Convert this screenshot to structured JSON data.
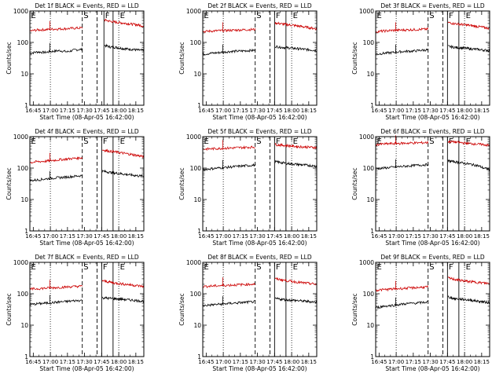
{
  "figure": {
    "event_labels": [
      "S",
      "F",
      "E"
    ],
    "first_label": "E"
  },
  "chart_data": [
    {
      "type": "line",
      "title": "Det 1f BLACK = Events, RED = LLD",
      "xlabel": "Start Time (08-Apr-05 16:42:00)",
      "ylabel": "Counts/sec",
      "yscale": "log",
      "ylim": [
        1,
        1000
      ],
      "xlim": [
        "16:42",
        "18:22"
      ],
      "x_ticks": [
        "16:45",
        "17:00",
        "17:15",
        "17:30",
        "17:45",
        "18:00",
        "18:15"
      ],
      "y_ticks": [
        "1",
        "10",
        "100",
        "1000"
      ],
      "series": [
        {
          "color": "#000000",
          "values_pre": [
            45,
            50,
            48,
            52,
            55,
            50,
            58,
            60
          ],
          "values_post": [
            80,
            72,
            70,
            65,
            62,
            60,
            57,
            55
          ]
        },
        {
          "color": "#cc0000",
          "values_pre": [
            230,
            250,
            255,
            265,
            270,
            275,
            285,
            290
          ],
          "values_post": [
            520,
            470,
            440,
            420,
            400,
            380,
            360,
            330
          ]
        }
      ],
      "dotted_lines": [
        "17:00",
        "18:00"
      ],
      "dashed_lines": [
        "17:28",
        "17:41"
      ],
      "solid_lines": [
        "17:47",
        "17:55"
      ]
    },
    {
      "type": "line",
      "title": "Det 2f BLACK = Events, RED = LLD",
      "xlabel": "Start Time (08-Apr-05 16:42:00)",
      "ylabel": "Counts/sec",
      "yscale": "log",
      "ylim": [
        1,
        1000
      ],
      "xlim": [
        "16:42",
        "18:22"
      ],
      "x_ticks": [
        "16:45",
        "17:00",
        "17:15",
        "17:30",
        "17:45",
        "18:00",
        "18:15"
      ],
      "y_ticks": [
        "1",
        "10",
        "100",
        "1000"
      ],
      "series": [
        {
          "color": "#000000",
          "values_pre": [
            42,
            45,
            47,
            50,
            52,
            53,
            55,
            56
          ],
          "values_post": [
            75,
            70,
            68,
            65,
            63,
            60,
            58,
            55
          ]
        },
        {
          "color": "#cc0000",
          "values_pre": [
            220,
            230,
            235,
            240,
            245,
            250,
            255,
            260
          ],
          "values_post": [
            420,
            390,
            370,
            350,
            330,
            310,
            290,
            270
          ]
        }
      ],
      "dotted_lines": [
        "17:00",
        "18:00"
      ],
      "dashed_lines": [
        "17:28",
        "17:41"
      ],
      "solid_lines": [
        "17:45",
        "17:55"
      ]
    },
    {
      "type": "line",
      "title": "Det 3f BLACK = Events, RED = LLD",
      "xlabel": "Start Time (08-Apr-05 16:42:00)",
      "ylabel": "Counts/sec",
      "yscale": "log",
      "ylim": [
        1,
        1000
      ],
      "xlim": [
        "16:42",
        "18:22"
      ],
      "x_ticks": [
        "16:45",
        "17:00",
        "17:15",
        "17:30",
        "17:45",
        "18:00",
        "18:15"
      ],
      "y_ticks": [
        "1",
        "10",
        "100",
        "1000"
      ],
      "series": [
        {
          "color": "#000000",
          "values_pre": [
            42,
            45,
            47,
            50,
            52,
            53,
            56,
            58
          ],
          "values_post": [
            75,
            70,
            68,
            65,
            62,
            60,
            57,
            55
          ]
        },
        {
          "color": "#cc0000",
          "values_pre": [
            220,
            230,
            240,
            245,
            250,
            255,
            260,
            265
          ],
          "values_post": [
            430,
            400,
            380,
            360,
            340,
            320,
            300,
            280
          ]
        }
      ],
      "dotted_lines": [
        "17:00",
        "18:00"
      ],
      "dashed_lines": [
        "17:28",
        "17:41"
      ],
      "solid_lines": [
        "17:45",
        "17:55"
      ]
    },
    {
      "type": "line",
      "title": "Det 4f BLACK = Events, RED = LLD",
      "xlabel": "Start Time (08-Apr-05 16:42:00)",
      "ylabel": "Counts/sec",
      "yscale": "log",
      "ylim": [
        1,
        1000
      ],
      "xlim": [
        "16:42",
        "18:22"
      ],
      "x_ticks": [
        "16:45",
        "17:00",
        "17:15",
        "17:30",
        "17:45",
        "18:00",
        "18:15"
      ],
      "y_ticks": [
        "1",
        "10",
        "100",
        "1000"
      ],
      "series": [
        {
          "color": "#000000",
          "values_pre": [
            40,
            42,
            45,
            48,
            50,
            52,
            55,
            58
          ],
          "values_post": [
            80,
            75,
            70,
            67,
            63,
            60,
            57,
            55
          ]
        },
        {
          "color": "#cc0000",
          "values_pre": [
            150,
            160,
            165,
            175,
            185,
            195,
            205,
            215
          ],
          "values_post": [
            380,
            350,
            330,
            310,
            290,
            270,
            250,
            230
          ]
        }
      ],
      "dotted_lines": [
        "17:00",
        "18:00"
      ],
      "dashed_lines": [
        "17:28",
        "17:41"
      ],
      "solid_lines": [
        "17:45",
        "17:55"
      ]
    },
    {
      "type": "line",
      "title": "Det 5f BLACK = Events, RED = LLD",
      "xlabel": "Start Time (08-Apr-05 16:42:00)",
      "ylabel": "Counts/sec",
      "yscale": "log",
      "ylim": [
        1,
        1000
      ],
      "xlim": [
        "16:42",
        "18:22"
      ],
      "x_ticks": [
        "16:45",
        "17:00",
        "17:15",
        "17:30",
        "17:45",
        "18:00",
        "18:15"
      ],
      "y_ticks": [
        "1",
        "10",
        "100",
        "1000"
      ],
      "series": [
        {
          "color": "#000000",
          "values_pre": [
            90,
            95,
            100,
            105,
            110,
            115,
            120,
            125
          ],
          "values_post": [
            160,
            150,
            140,
            135,
            130,
            125,
            120,
            115
          ]
        },
        {
          "color": "#cc0000",
          "values_pre": [
            400,
            410,
            420,
            430,
            440,
            450,
            460,
            470
          ],
          "values_post": [
            560,
            540,
            520,
            500,
            480,
            470,
            460,
            450
          ]
        }
      ],
      "dotted_lines": [
        "17:00",
        "18:00"
      ],
      "dashed_lines": [
        "17:28",
        "17:41"
      ],
      "solid_lines": [
        "17:45",
        "17:55"
      ]
    },
    {
      "type": "line",
      "title": "Det 6f BLACK = Events, RED = LLD",
      "xlabel": "Start Time (08-Apr-05 16:42:00)",
      "ylabel": "Counts/sec",
      "yscale": "log",
      "ylim": [
        1,
        1000
      ],
      "xlim": [
        "16:42",
        "18:22"
      ],
      "x_ticks": [
        "16:45",
        "17:00",
        "17:15",
        "17:30",
        "17:45",
        "18:00",
        "18:15"
      ],
      "y_ticks": [
        "1",
        "10",
        "100",
        "1000"
      ],
      "series": [
        {
          "color": "#000000",
          "values_pre": [
            95,
            100,
            105,
            110,
            115,
            120,
            125,
            130
          ],
          "values_post": [
            170,
            160,
            150,
            140,
            130,
            120,
            100,
            90
          ]
        },
        {
          "color": "#cc0000",
          "values_pre": [
            560,
            580,
            600,
            610,
            620,
            630,
            640,
            650
          ],
          "values_post": [
            700,
            680,
            650,
            620,
            600,
            580,
            560,
            520
          ]
        }
      ],
      "dotted_lines": [
        "17:00",
        "18:00"
      ],
      "dashed_lines": [
        "17:28",
        "17:41"
      ],
      "solid_lines": [
        "17:45",
        "17:55"
      ]
    },
    {
      "type": "line",
      "title": "Det 7f BLACK = Events, RED = LLD",
      "xlabel": "Start Time (08-Apr-05 16:42:00)",
      "ylabel": "Counts/sec",
      "yscale": "log",
      "ylim": [
        1,
        1000
      ],
      "xlim": [
        "16:42",
        "18:22"
      ],
      "x_ticks": [
        "16:45",
        "17:00",
        "17:15",
        "17:30",
        "17:45",
        "18:00",
        "18:15"
      ],
      "y_ticks": [
        "1",
        "10",
        "100",
        "1000"
      ],
      "series": [
        {
          "color": "#000000",
          "values_pre": [
            45,
            48,
            50,
            52,
            55,
            57,
            60,
            62
          ],
          "values_post": [
            75,
            72,
            70,
            68,
            65,
            63,
            60,
            58
          ]
        },
        {
          "color": "#cc0000",
          "values_pre": [
            140,
            145,
            150,
            155,
            160,
            165,
            170,
            175
          ],
          "values_post": [
            260,
            240,
            220,
            210,
            200,
            190,
            180,
            170
          ]
        }
      ],
      "dotted_lines": [
        "17:00",
        "18:00"
      ],
      "dashed_lines": [
        "17:28",
        "17:41"
      ],
      "solid_lines": [
        "17:45",
        "17:55"
      ]
    },
    {
      "type": "line",
      "title": "Det 8f BLACK = Events, RED = LLD",
      "xlabel": "Start Time (08-Apr-05 16:42:00)",
      "ylabel": "Counts/sec",
      "yscale": "log",
      "ylim": [
        1,
        1000
      ],
      "xlim": [
        "16:42",
        "18:22"
      ],
      "x_ticks": [
        "16:45",
        "17:00",
        "17:15",
        "17:30",
        "17:45",
        "18:00",
        "18:15"
      ],
      "y_ticks": [
        "1",
        "10",
        "100",
        "1000"
      ],
      "series": [
        {
          "color": "#000000",
          "values_pre": [
            42,
            44,
            46,
            48,
            50,
            52,
            54,
            56
          ],
          "values_post": [
            70,
            67,
            64,
            62,
            60,
            58,
            56,
            54
          ]
        },
        {
          "color": "#cc0000",
          "values_pre": [
            170,
            175,
            180,
            185,
            190,
            195,
            200,
            205
          ],
          "values_post": [
            300,
            280,
            260,
            245,
            230,
            220,
            210,
            200
          ]
        }
      ],
      "dotted_lines": [
        "17:00",
        "18:00"
      ],
      "dashed_lines": [
        "17:28",
        "17:41"
      ],
      "solid_lines": [
        "17:45",
        "17:55"
      ]
    },
    {
      "type": "line",
      "title": "Det 9f BLACK = Events, RED = LLD",
      "xlabel": "Start Time (08-Apr-05 16:42:00)",
      "ylabel": "Counts/sec",
      "yscale": "log",
      "ylim": [
        1,
        1000
      ],
      "xlim": [
        "16:42",
        "18:22"
      ],
      "x_ticks": [
        "16:45",
        "17:00",
        "17:15",
        "17:30",
        "17:45",
        "18:00",
        "18:15"
      ],
      "y_ticks": [
        "1",
        "10",
        "100",
        "1000"
      ],
      "series": [
        {
          "color": "#000000",
          "values_pre": [
            35,
            40,
            42,
            45,
            48,
            50,
            52,
            55
          ],
          "values_post": [
            80,
            70,
            68,
            65,
            62,
            58,
            55,
            52
          ]
        },
        {
          "color": "#cc0000",
          "values_pre": [
            130,
            135,
            140,
            145,
            150,
            155,
            160,
            165
          ],
          "values_post": [
            320,
            290,
            270,
            250,
            240,
            230,
            220,
            210
          ]
        }
      ],
      "dotted_lines": [
        "17:00",
        "18:00"
      ],
      "dashed_lines": [
        "17:28",
        "17:41"
      ],
      "solid_lines": [
        "17:45",
        "17:55"
      ]
    }
  ]
}
